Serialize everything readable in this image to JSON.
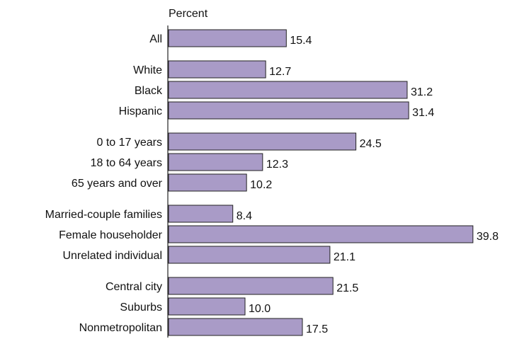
{
  "chart_data": {
    "type": "bar",
    "orientation": "horizontal",
    "title": "",
    "xlabel": "Percent",
    "ylabel": "",
    "xlim": [
      0,
      40
    ],
    "grid": false,
    "legend": "none",
    "bar_color": "#a99bc7",
    "bar_outline": "#222222",
    "groups": [
      {
        "categories": [
          "All"
        ],
        "values": [
          15.4
        ]
      },
      {
        "categories": [
          "White",
          "Black",
          "Hispanic"
        ],
        "values": [
          12.7,
          31.2,
          31.4
        ]
      },
      {
        "categories": [
          "0 to 17 years",
          "18 to 64 years",
          "65 years and over"
        ],
        "values": [
          24.5,
          12.3,
          10.2
        ]
      },
      {
        "categories": [
          "Married-couple families",
          "Female householder",
          "Unrelated individual"
        ],
        "values": [
          8.4,
          39.8,
          21.1
        ]
      },
      {
        "categories": [
          "Central city",
          "Suburbs",
          "Nonmetropolitan"
        ],
        "values": [
          21.5,
          10.0,
          17.5
        ]
      }
    ],
    "value_labels": [
      "15.4",
      "12.7",
      "31.2",
      "31.4",
      "24.5",
      "12.3",
      "10.2",
      "8.4",
      "39.8",
      "21.1",
      "21.5",
      "10.0",
      "17.5"
    ]
  }
}
